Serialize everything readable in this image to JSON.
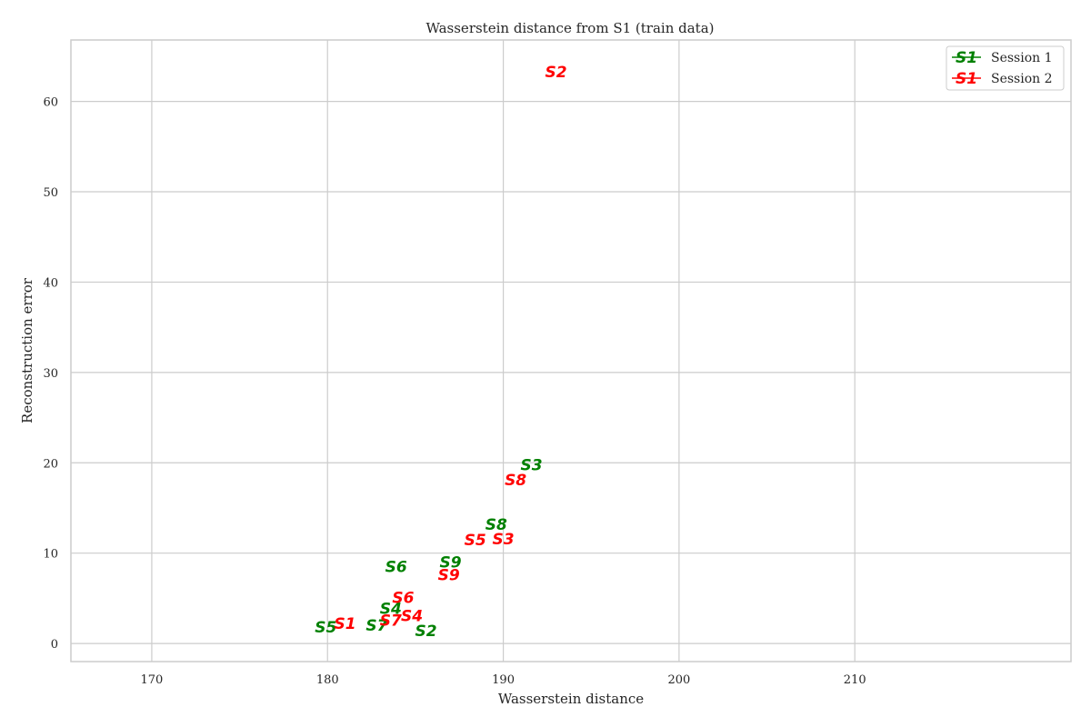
{
  "chart_data": {
    "type": "scatter",
    "title": "Wasserstein distance from S1 (train data)",
    "xlabel": "Wasserstein distance",
    "ylabel": "Reconstruction error",
    "xlim": [
      165.4,
      222.3
    ],
    "ylim": [
      -2,
      66.8
    ],
    "xticks": [
      170,
      180,
      190,
      200,
      210
    ],
    "yticks": [
      0,
      10,
      20,
      30,
      40,
      50,
      60
    ],
    "grid": true,
    "legend_placement": "top-right",
    "marker_style": "text labels",
    "series": [
      {
        "name": "Session 1",
        "legend_marker": "S1",
        "color": "#008000",
        "points": [
          {
            "label": "S2",
            "x": 185.6,
            "y": 1.4
          },
          {
            "label": "S3",
            "x": 191.6,
            "y": 19.8
          },
          {
            "label": "S4",
            "x": 183.6,
            "y": 3.9
          },
          {
            "label": "S5",
            "x": 179.9,
            "y": 1.8
          },
          {
            "label": "S6",
            "x": 183.9,
            "y": 8.5
          },
          {
            "label": "S7",
            "x": 182.8,
            "y": 2.0
          },
          {
            "label": "S8",
            "x": 189.6,
            "y": 13.2
          },
          {
            "label": "S9",
            "x": 187.0,
            "y": 9.0
          }
        ]
      },
      {
        "name": "Session 2",
        "legend_marker": "S1",
        "color": "#ff0000",
        "points": [
          {
            "label": "S1",
            "x": 181.0,
            "y": 2.2
          },
          {
            "label": "S2",
            "x": 193.0,
            "y": 63.3
          },
          {
            "label": "S3",
            "x": 190.0,
            "y": 11.6
          },
          {
            "label": "S4",
            "x": 184.8,
            "y": 3.1
          },
          {
            "label": "S5",
            "x": 188.4,
            "y": 11.5
          },
          {
            "label": "S6",
            "x": 184.3,
            "y": 5.1
          },
          {
            "label": "S7",
            "x": 183.6,
            "y": 2.6
          },
          {
            "label": "S8",
            "x": 190.7,
            "y": 18.1
          },
          {
            "label": "S9",
            "x": 186.9,
            "y": 7.6
          }
        ]
      }
    ]
  }
}
